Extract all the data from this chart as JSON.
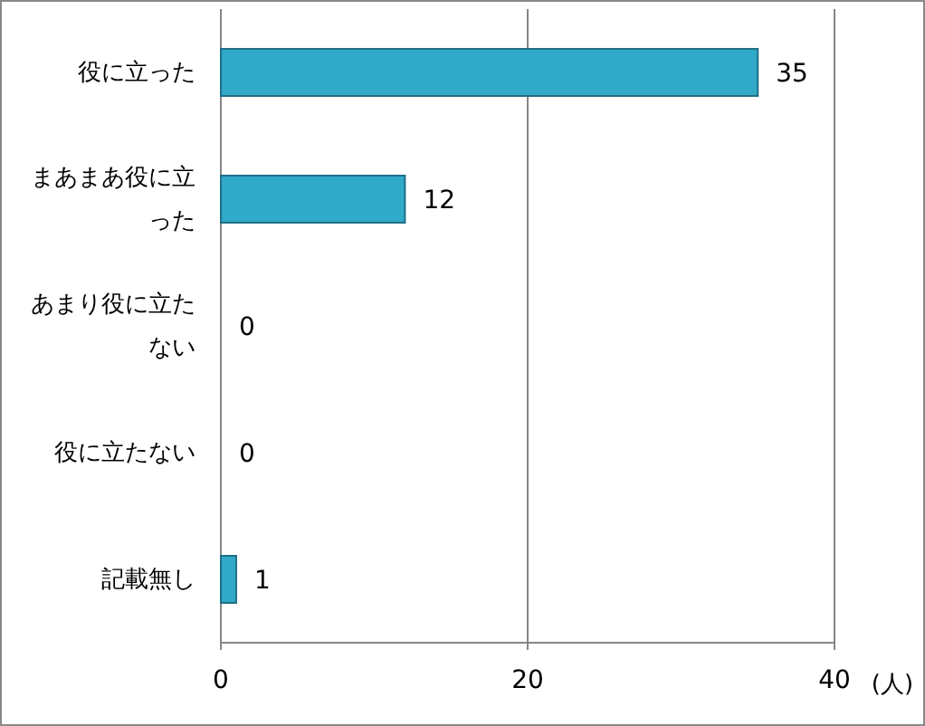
{
  "chart_data": {
    "type": "bar",
    "orientation": "horizontal",
    "categories": [
      "役に立った",
      "まあまあ役に立った",
      "あまり役に立たない",
      "役に立たない",
      "記載無し"
    ],
    "values": [
      35,
      12,
      0,
      0,
      1
    ],
    "color": "#31a9c9",
    "xlim": [
      0,
      40
    ],
    "xticks": [
      0,
      20,
      40
    ],
    "xlabel": "(人)",
    "grid": "x",
    "data_labels": true
  }
}
